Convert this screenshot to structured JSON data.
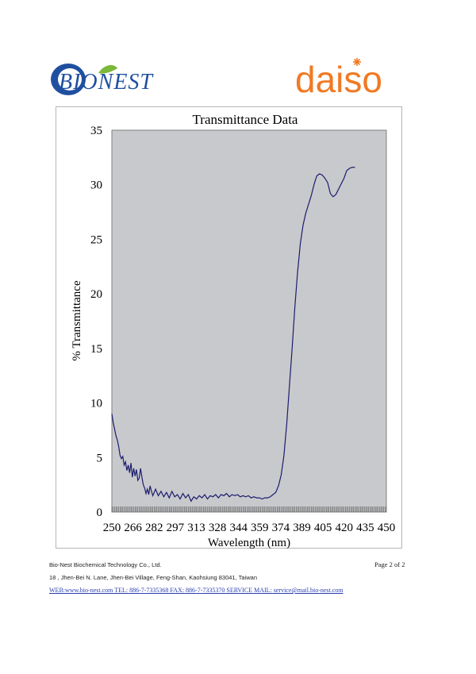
{
  "header": {
    "left_logo_text": "BIONEST",
    "right_logo_text": "daiso",
    "colors": {
      "bionest_blue": "#1f4fa0",
      "bionest_green": "#7ab83a",
      "daiso_orange": "#f07a24"
    }
  },
  "chart_data": {
    "type": "line",
    "title": "Transmittance Data",
    "xlabel": "Wavelength (nm)",
    "ylabel": "% Transmittance",
    "xlim": [
      250,
      451
    ],
    "ylim": [
      0,
      35
    ],
    "yticks": [
      0,
      5,
      10,
      15,
      20,
      25,
      30,
      35
    ],
    "xtick_labels": [
      "250",
      "266",
      "282",
      "297",
      "313",
      "328",
      "344",
      "359",
      "374",
      "389",
      "405",
      "420",
      "435",
      "450"
    ],
    "plot_background": "#c8c9cc",
    "line_color": "#1c1c6e",
    "series": [
      {
        "values": [
          [
            250,
            9.0
          ],
          [
            251,
            8.2
          ],
          [
            252,
            7.6
          ],
          [
            253,
            7.0
          ],
          [
            254,
            6.6
          ],
          [
            255,
            6.0
          ],
          [
            256,
            5.2
          ],
          [
            257,
            4.9
          ],
          [
            258,
            5.1
          ],
          [
            259,
            4.3
          ],
          [
            260,
            4.6
          ],
          [
            261,
            3.8
          ],
          [
            262,
            4.3
          ],
          [
            263,
            3.6
          ],
          [
            264,
            4.5
          ],
          [
            265,
            3.2
          ],
          [
            266,
            4.0
          ],
          [
            267,
            3.3
          ],
          [
            268,
            3.9
          ],
          [
            269,
            2.9
          ],
          [
            270,
            3.1
          ],
          [
            271,
            4.0
          ],
          [
            272,
            3.2
          ],
          [
            273,
            2.5
          ],
          [
            274,
            2.2
          ],
          [
            275,
            1.7
          ],
          [
            276,
            2.1
          ],
          [
            277,
            1.6
          ],
          [
            278,
            2.4
          ],
          [
            279,
            1.9
          ],
          [
            280,
            1.5
          ],
          [
            282,
            2.1
          ],
          [
            284,
            1.5
          ],
          [
            286,
            1.9
          ],
          [
            288,
            1.4
          ],
          [
            290,
            1.8
          ],
          [
            292,
            1.3
          ],
          [
            294,
            1.9
          ],
          [
            296,
            1.4
          ],
          [
            298,
            1.6
          ],
          [
            300,
            1.2
          ],
          [
            302,
            1.7
          ],
          [
            304,
            1.3
          ],
          [
            306,
            1.6
          ],
          [
            308,
            1.0
          ],
          [
            310,
            1.4
          ],
          [
            312,
            1.2
          ],
          [
            314,
            1.5
          ],
          [
            316,
            1.3
          ],
          [
            318,
            1.6
          ],
          [
            320,
            1.2
          ],
          [
            322,
            1.5
          ],
          [
            324,
            1.4
          ],
          [
            326,
            1.6
          ],
          [
            328,
            1.3
          ],
          [
            330,
            1.6
          ],
          [
            332,
            1.5
          ],
          [
            334,
            1.7
          ],
          [
            336,
            1.4
          ],
          [
            338,
            1.6
          ],
          [
            340,
            1.5
          ],
          [
            342,
            1.6
          ],
          [
            344,
            1.4
          ],
          [
            346,
            1.5
          ],
          [
            348,
            1.4
          ],
          [
            350,
            1.5
          ],
          [
            352,
            1.3
          ],
          [
            354,
            1.4
          ],
          [
            356,
            1.3
          ],
          [
            358,
            1.3
          ],
          [
            360,
            1.2
          ],
          [
            362,
            1.3
          ],
          [
            364,
            1.3
          ],
          [
            366,
            1.4
          ],
          [
            368,
            1.6
          ],
          [
            370,
            1.8
          ],
          [
            372,
            2.4
          ],
          [
            374,
            3.4
          ],
          [
            376,
            5.2
          ],
          [
            378,
            8.0
          ],
          [
            380,
            11.5
          ],
          [
            382,
            15.0
          ],
          [
            384,
            18.8
          ],
          [
            386,
            22.0
          ],
          [
            388,
            24.6
          ],
          [
            390,
            26.3
          ],
          [
            392,
            27.4
          ],
          [
            394,
            28.2
          ],
          [
            396,
            29.0
          ],
          [
            398,
            30.0
          ],
          [
            400,
            30.8
          ],
          [
            402,
            31.0
          ],
          [
            404,
            30.9
          ],
          [
            406,
            30.6
          ],
          [
            408,
            30.2
          ],
          [
            410,
            29.2
          ],
          [
            412,
            28.9
          ],
          [
            414,
            29.1
          ],
          [
            416,
            29.6
          ],
          [
            418,
            30.1
          ],
          [
            420,
            30.6
          ],
          [
            422,
            31.3
          ],
          [
            424,
            31.5
          ],
          [
            426,
            31.6
          ],
          [
            428,
            31.6
          ]
        ]
      }
    ]
  },
  "footer": {
    "company": "Bio-Nest Biochemical Technology Co., Ltd.",
    "address": "18 , Jhen-Bei N. Lane, Jhen-Bei Village, Feng-Shan, Kaohsiung 83041, Taiwan",
    "contact": "WEB:www.bio-nest.com  TEL: 886-7-7335368   FAX: 886-7-7335370   SERVICE MAIL: service@mail.bio-nest.com",
    "page_label": "Page 2  of  2"
  }
}
